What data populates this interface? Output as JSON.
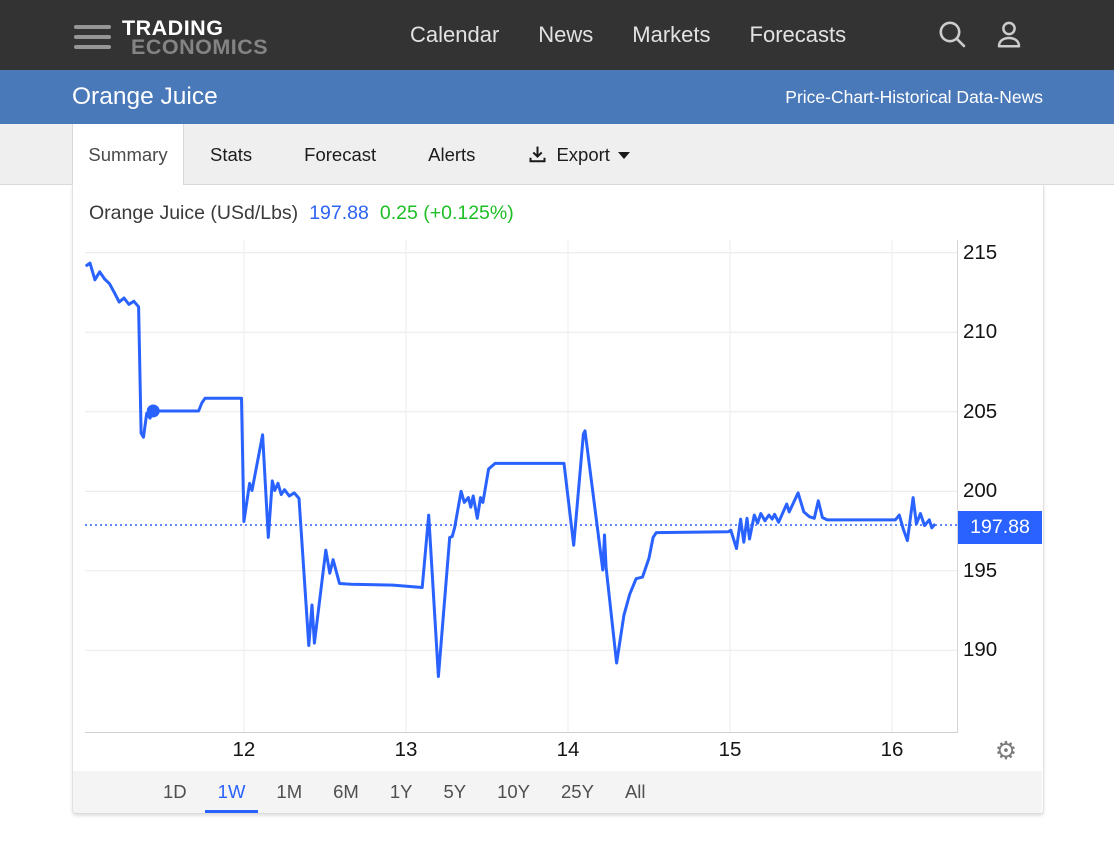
{
  "navbar": {
    "logo_line1": "TRADING",
    "logo_line2": "ECONOMICS",
    "links": [
      "Calendar",
      "News",
      "Markets",
      "Forecasts"
    ],
    "icons": {
      "menu": "hamburger",
      "search": "magnifier",
      "account": "person"
    }
  },
  "subheader": {
    "title": "Orange Juice",
    "links": [
      "Price",
      "Chart",
      "Historical Data",
      "News"
    ],
    "separator": " - "
  },
  "tabs": {
    "items": [
      {
        "label": "Summary",
        "active": true
      },
      {
        "label": "Stats"
      },
      {
        "label": "Forecast"
      },
      {
        "label": "Alerts"
      },
      {
        "label": "Export",
        "icon": "download-icon",
        "caret": true
      }
    ]
  },
  "chart_header": {
    "instrument": "Orange Juice (USd/Lbs)",
    "price": "197.88",
    "change": "0.25 (+0.125%)"
  },
  "chart_data": {
    "type": "line",
    "title": "Orange Juice (USd/Lbs)",
    "series_name": "Orange Juice price (USd/Lbs)",
    "x_unit": "day of month",
    "x_ticks": [
      "12",
      "13",
      "14",
      "15",
      "16"
    ],
    "x_tick_days": [
      12,
      13,
      14,
      15,
      16
    ],
    "y_ticks": [
      215,
      210,
      205,
      200,
      195,
      190
    ],
    "xlim": [
      11.019,
      16.407
    ],
    "ylim": [
      184.8,
      215.8
    ],
    "grid": true,
    "current_price": 197.88,
    "current_price_label": "197.88",
    "line_color": "#2962ff",
    "marker_point": [
      11.44,
      205.05
    ],
    "points": [
      [
        11.03,
        214.2
      ],
      [
        11.05,
        214.35
      ],
      [
        11.08,
        213.3
      ],
      [
        11.11,
        213.8
      ],
      [
        11.14,
        213.35
      ],
      [
        11.17,
        213.05
      ],
      [
        11.2,
        212.5
      ],
      [
        11.23,
        211.9
      ],
      [
        11.26,
        212.15
      ],
      [
        11.29,
        211.75
      ],
      [
        11.32,
        211.95
      ],
      [
        11.35,
        211.6
      ],
      [
        11.365,
        203.65
      ],
      [
        11.38,
        203.4
      ],
      [
        11.4,
        204.9
      ],
      [
        11.42,
        204.6
      ],
      [
        11.44,
        205.05
      ],
      [
        11.72,
        205.05
      ],
      [
        11.74,
        205.55
      ],
      [
        11.76,
        205.85
      ],
      [
        11.985,
        205.85
      ],
      [
        12.0,
        198.1
      ],
      [
        12.035,
        200.5
      ],
      [
        12.05,
        200.05
      ],
      [
        12.115,
        203.55
      ],
      [
        12.15,
        197.1
      ],
      [
        12.175,
        200.65
      ],
      [
        12.19,
        200.05
      ],
      [
        12.21,
        200.5
      ],
      [
        12.23,
        199.8
      ],
      [
        12.25,
        200.1
      ],
      [
        12.28,
        199.7
      ],
      [
        12.31,
        199.9
      ],
      [
        12.34,
        199.55
      ],
      [
        12.4,
        190.3
      ],
      [
        12.42,
        192.85
      ],
      [
        12.435,
        190.45
      ],
      [
        12.505,
        196.3
      ],
      [
        12.53,
        194.85
      ],
      [
        12.55,
        195.7
      ],
      [
        12.59,
        194.2
      ],
      [
        12.66,
        194.15
      ],
      [
        12.92,
        194.1
      ],
      [
        13.1,
        193.95
      ],
      [
        13.14,
        198.5
      ],
      [
        13.2,
        188.35
      ],
      [
        13.27,
        197.1
      ],
      [
        13.285,
        197.15
      ],
      [
        13.3,
        197.7
      ],
      [
        13.34,
        200.0
      ],
      [
        13.36,
        199.3
      ],
      [
        13.385,
        199.6
      ],
      [
        13.4,
        199.0
      ],
      [
        13.415,
        199.7
      ],
      [
        13.44,
        198.3
      ],
      [
        13.46,
        199.6
      ],
      [
        13.475,
        199.3
      ],
      [
        13.51,
        201.4
      ],
      [
        13.55,
        201.75
      ],
      [
        13.975,
        201.75
      ],
      [
        14.035,
        196.6
      ],
      [
        14.095,
        203.6
      ],
      [
        14.105,
        203.8
      ],
      [
        14.215,
        195.05
      ],
      [
        14.225,
        197.25
      ],
      [
        14.235,
        195.2
      ],
      [
        14.3,
        189.2
      ],
      [
        14.345,
        192.2
      ],
      [
        14.38,
        193.5
      ],
      [
        14.42,
        194.5
      ],
      [
        14.46,
        194.6
      ],
      [
        14.5,
        195.8
      ],
      [
        14.525,
        197.1
      ],
      [
        14.545,
        197.4
      ],
      [
        14.99,
        197.45
      ],
      [
        15.005,
        197.55
      ],
      [
        15.04,
        196.4
      ],
      [
        15.065,
        198.25
      ],
      [
        15.085,
        196.8
      ],
      [
        15.105,
        198.3
      ],
      [
        15.12,
        197.0
      ],
      [
        15.15,
        198.5
      ],
      [
        15.17,
        198.0
      ],
      [
        15.19,
        198.6
      ],
      [
        15.215,
        198.15
      ],
      [
        15.24,
        198.5
      ],
      [
        15.26,
        198.25
      ],
      [
        15.275,
        198.55
      ],
      [
        15.3,
        198.05
      ],
      [
        15.35,
        199.2
      ],
      [
        15.365,
        198.7
      ],
      [
        15.42,
        199.9
      ],
      [
        15.455,
        198.7
      ],
      [
        15.49,
        198.4
      ],
      [
        15.52,
        198.3
      ],
      [
        15.545,
        199.4
      ],
      [
        15.57,
        198.35
      ],
      [
        15.6,
        198.2
      ],
      [
        16.02,
        198.2
      ],
      [
        16.045,
        198.5
      ],
      [
        16.07,
        197.6
      ],
      [
        16.095,
        196.9
      ],
      [
        16.13,
        199.6
      ],
      [
        16.15,
        197.95
      ],
      [
        16.175,
        198.6
      ],
      [
        16.2,
        197.85
      ],
      [
        16.23,
        198.2
      ],
      [
        16.245,
        197.7
      ],
      [
        16.26,
        197.88
      ]
    ]
  },
  "range_bar": {
    "items": [
      "1D",
      "1W",
      "1M",
      "6M",
      "1Y",
      "5Y",
      "10Y",
      "25Y",
      "All"
    ],
    "active": "1W"
  },
  "icons": {
    "settings": "gear",
    "settings_glyph": "⚙",
    "export": "download-arrow"
  }
}
